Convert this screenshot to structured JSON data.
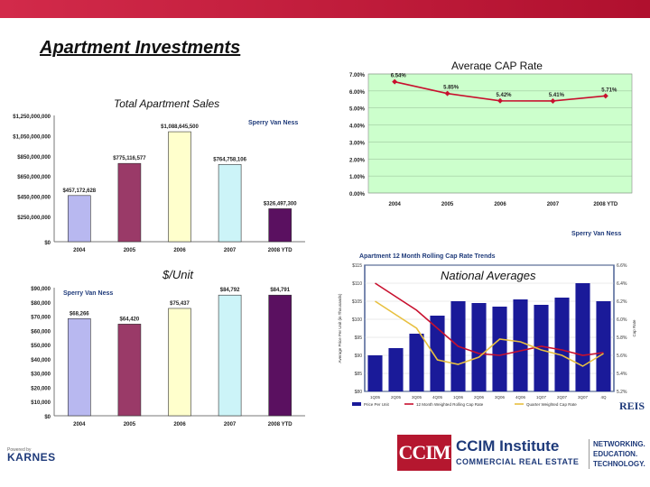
{
  "page": {
    "title": "Apartment Investments"
  },
  "logos": {
    "sperry": "Sperry Van Ness",
    "karnes": "KARNES",
    "karnes_powered": "Powered by",
    "reis": "REIS",
    "ccim_box": "CCIM",
    "ccim_name": "CCIM Institute",
    "ccim_sub": "COMMERCIAL REAL ESTATE",
    "ccim_tag": [
      "NETWORKING.",
      "EDUCATION.",
      "TECHNOLOGY."
    ]
  },
  "chart_data": [
    {
      "type": "bar",
      "title": "Total Apartment Sales",
      "categories": [
        "2004",
        "2005",
        "2006",
        "2007",
        "2008 YTD"
      ],
      "values": [
        457172628,
        775116577,
        1088645500,
        764758106,
        326497300
      ],
      "data_labels": [
        "$457,172,628",
        "$775,116,577",
        "$1,088,645,500",
        "$764,758,106",
        "$326,497,300"
      ],
      "ytick_labels": [
        "$0",
        "$250,000,000",
        "$450,000,000",
        "$650,000,000",
        "$850,000,000",
        "$1,050,000,000",
        "$1,250,000,000"
      ],
      "yticks": [
        0,
        250000000,
        450000000,
        650000000,
        850000000,
        1050000000,
        1250000000
      ],
      "ylim": [
        0,
        1250000000
      ],
      "colors": [
        "#b8b8f0",
        "#9a3a68",
        "#ffffcc",
        "#ccf4f8",
        "#5a1060"
      ]
    },
    {
      "type": "bar",
      "title": "$/Unit",
      "categories": [
        "2004",
        "2005",
        "2006",
        "2007",
        "2008 YTD"
      ],
      "values": [
        68266,
        64420,
        75437,
        84792,
        84791
      ],
      "data_labels": [
        "$68,266",
        "$64,420",
        "$75,437",
        "$84,792",
        "$84,791"
      ],
      "ytick_labels": [
        "$0",
        "$10,000",
        "$20,000",
        "$30,000",
        "$40,000",
        "$50,000",
        "$60,000",
        "$70,000",
        "$80,000",
        "$90,000"
      ],
      "yticks": [
        0,
        10000,
        20000,
        30000,
        40000,
        50000,
        60000,
        70000,
        80000,
        90000
      ],
      "ylim": [
        0,
        90000
      ],
      "colors": [
        "#b8b8f0",
        "#9a3a68",
        "#ffffcc",
        "#ccf4f8",
        "#5a1060"
      ]
    },
    {
      "type": "line",
      "title": "Average CAP Rate",
      "categories": [
        "2004",
        "2005",
        "2006",
        "2007",
        "2008 YTD"
      ],
      "values": [
        6.54,
        5.85,
        5.42,
        5.41,
        5.71
      ],
      "data_labels": [
        "6.54%",
        "5.85%",
        "5.42%",
        "5.41%",
        "5.71%"
      ],
      "ytick_labels": [
        "0.00%",
        "1.00%",
        "2.00%",
        "3.00%",
        "4.00%",
        "5.00%",
        "6.00%",
        "7.00%"
      ],
      "yticks": [
        0,
        1,
        2,
        3,
        4,
        5,
        6,
        7
      ],
      "ylim": [
        0,
        7
      ],
      "grid": true,
      "colors": {
        "line": "#c8102e",
        "plot_bg": "#ccffcc"
      }
    },
    {
      "type": "bar",
      "title": "Apartment 12 Month Rolling Cap Rate Trends",
      "subtitle": "National Averages",
      "ylabel": "Average Price Per Unit (in Thousands)",
      "y2label": "Cap Rate",
      "categories": [
        "1Q05",
        "2Q05",
        "3Q05",
        "4Q05",
        "1Q06",
        "2Q06",
        "3Q06",
        "4Q06",
        "1Q07",
        "2Q07",
        "3Q07",
        "4Q"
      ],
      "ytick_labels": [
        "$80",
        "$85",
        "$90",
        "$95",
        "$100",
        "$105",
        "$110",
        "$115"
      ],
      "yticks": [
        80,
        85,
        90,
        95,
        100,
        105,
        110,
        115
      ],
      "ylim": [
        80,
        115
      ],
      "y2tick_labels": [
        "5.2%",
        "5.4%",
        "5.6%",
        "5.8%",
        "6.0%",
        "6.2%",
        "6.4%",
        "6.6%"
      ],
      "y2ticks": [
        5.2,
        5.4,
        5.6,
        5.8,
        6.0,
        6.2,
        6.4,
        6.6
      ],
      "y2lim": [
        5.2,
        6.6
      ],
      "series": [
        {
          "name": "Price Per Unit",
          "axis": "left",
          "kind": "bar",
          "values": [
            90,
            92,
            96,
            101,
            105,
            104.5,
            103.5,
            105.5,
            104,
            106,
            110,
            105
          ]
        },
        {
          "name": "12 Month Weighted Rolling Cap Rate",
          "axis": "right",
          "kind": "line",
          "values": [
            6.4,
            6.25,
            6.1,
            5.9,
            5.7,
            5.62,
            5.6,
            5.65,
            5.7,
            5.66,
            5.6,
            5.63
          ]
        },
        {
          "name": "Quarter Weighted Cap Rate",
          "axis": "right",
          "kind": "line",
          "values": [
            6.2,
            6.05,
            5.9,
            5.55,
            5.5,
            5.58,
            5.78,
            5.75,
            5.66,
            5.6,
            5.48,
            5.62
          ]
        }
      ],
      "legend": "bottom",
      "colors": {
        "bars": "#1a1a99",
        "line1": "#c8102e",
        "line2": "#e8c040",
        "frame": "#1e3a7a"
      }
    }
  ]
}
